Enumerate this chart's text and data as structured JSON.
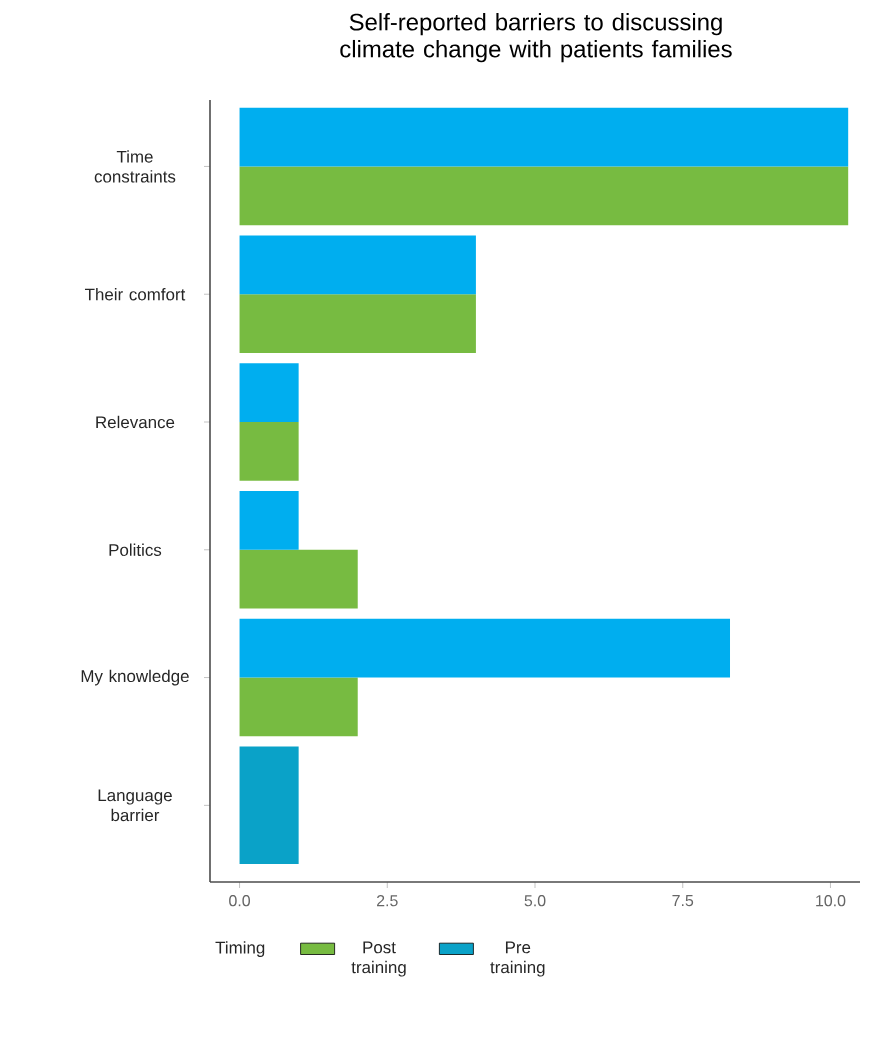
{
  "chart_data": {
    "type": "bar",
    "orientation": "horizontal",
    "title": "Self-reported barriers to discussing climate change with patients families",
    "categories": [
      "Time constraints",
      "Their comfort",
      "Relevance",
      "Politics",
      "My knowledge",
      "Language barrier"
    ],
    "series": [
      {
        "name": "Post training",
        "color": "#77bb41",
        "values": [
          10.3,
          4,
          1,
          2,
          2,
          null
        ]
      },
      {
        "name": "Pre training",
        "color": "#0aa2c8",
        "colors": [
          "#00aeef",
          "#00aeef",
          "#00aeef",
          "#00aeef",
          "#00aeef",
          "#0aa2c8"
        ],
        "values": [
          10.3,
          4,
          1,
          1,
          8.3,
          1
        ]
      }
    ],
    "legend_title": "Timing",
    "legend": "bottom",
    "xlim": [
      -0.5,
      10.5
    ],
    "xticks": [
      {
        "value": 0,
        "label": "0.0"
      },
      2.5,
      {
        "value": 5,
        "label": "5.0"
      },
      7.5,
      {
        "value": 10,
        "label": "10.0"
      }
    ]
  }
}
